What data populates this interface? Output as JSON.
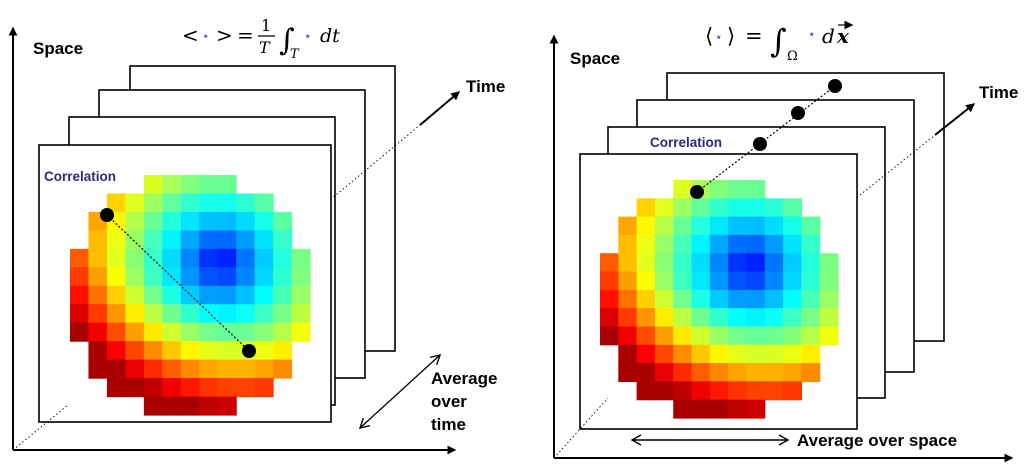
{
  "left_panel": {
    "formula": {
      "open": "<",
      "close": ">",
      "equals": "=",
      "numerator": "1",
      "denominator": "T",
      "integral": "∫",
      "subscript": "T",
      "placeholder": "⋆",
      "differential": "dt"
    },
    "space_label": "Space",
    "time_label": "Time",
    "correlation_label": "Correlation",
    "average_label_lines": [
      "Average",
      "over",
      "time"
    ]
  },
  "right_panel": {
    "formula": {
      "open": "⟨",
      "close": "⟩",
      "equals": "=",
      "integral": "∫",
      "subscript": "Ω",
      "placeholder": "⋆",
      "differential": "d",
      "vector_var": "x"
    },
    "space_label": "Space",
    "time_label": "Time",
    "correlation_label": "Correlation",
    "average_label": "Average over space"
  },
  "colors": {
    "correlation_label": "#2e2a7d",
    "placeholder_star": "#2b2fd6",
    "heatmap_low": "#1a4fe0",
    "heatmap_high": "#e8221a"
  },
  "heatmap": {
    "grid_cells": 13,
    "colormap": "jet",
    "minimum_near": "upper-center",
    "maximum_near": "lower-left"
  }
}
